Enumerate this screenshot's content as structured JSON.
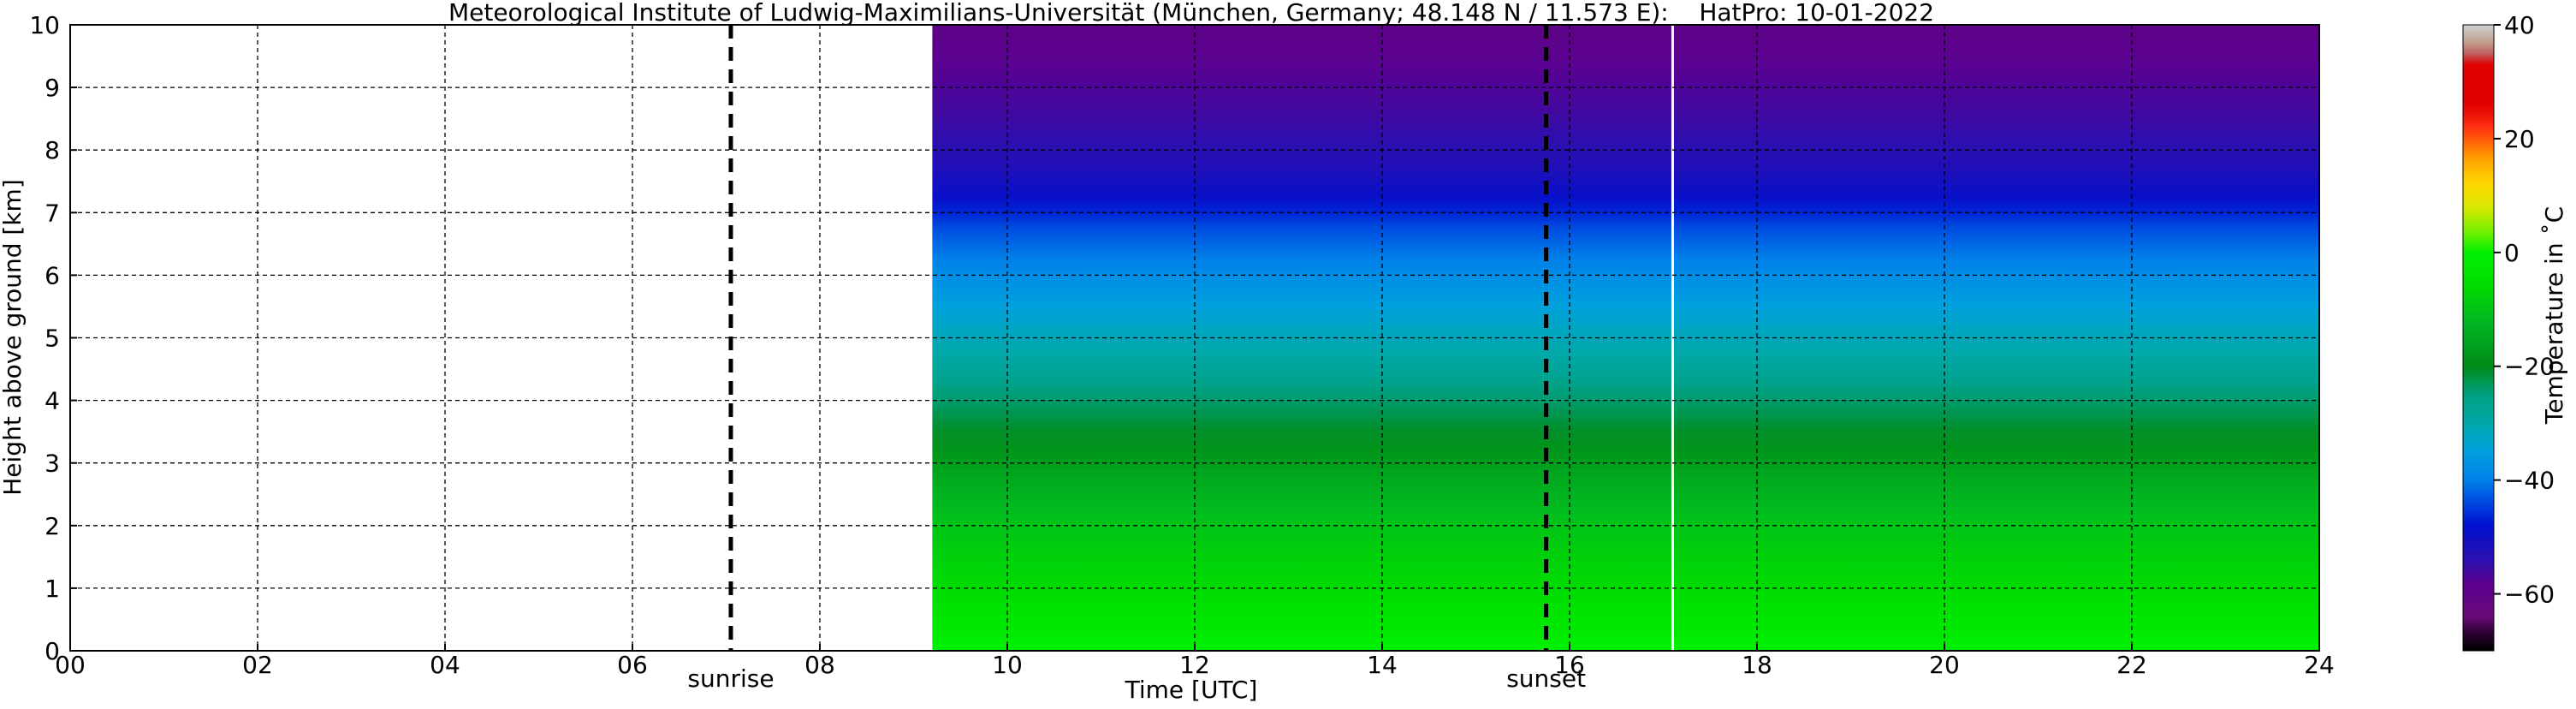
{
  "chart_data": {
    "type": "heatmap",
    "title": "Meteorological Institute of Ludwig-Maximilians-Universität (München, Germany; 48.148 N / 11.573 E):    HatPro: 10-01-2022",
    "xlabel": "Time [UTC]",
    "ylabel": "Height above ground [km]",
    "xlim": [
      0,
      24
    ],
    "ylim": [
      0,
      10
    ],
    "x_ticks": [
      "00",
      "02",
      "04",
      "06",
      "08",
      "10",
      "12",
      "14",
      "16",
      "18",
      "20",
      "22",
      "24"
    ],
    "y_ticks": [
      "0",
      "1",
      "2",
      "3",
      "4",
      "5",
      "6",
      "7",
      "8",
      "9",
      "10"
    ],
    "grid": true,
    "data_start_hour": 9.2,
    "data_end_hour": 24,
    "data_gap_hour": 17.1,
    "vertical_lines": [
      {
        "label": "sunrise",
        "x": 7.05
      },
      {
        "label": "sunset",
        "x": 15.75
      }
    ],
    "temperature_profile": [
      {
        "height_km": 0.0,
        "temp_c": 0
      },
      {
        "height_km": 0.3,
        "temp_c": -2
      },
      {
        "height_km": 1.0,
        "temp_c": -6
      },
      {
        "height_km": 2.0,
        "temp_c": -10
      },
      {
        "height_km": 2.8,
        "temp_c": -15
      },
      {
        "height_km": 3.4,
        "temp_c": -20
      },
      {
        "height_km": 4.0,
        "temp_c": -24
      },
      {
        "height_km": 4.6,
        "temp_c": -29
      },
      {
        "height_km": 5.4,
        "temp_c": -34
      },
      {
        "height_km": 6.0,
        "temp_c": -38
      },
      {
        "height_km": 6.8,
        "temp_c": -44
      },
      {
        "height_km": 7.2,
        "temp_c": -49
      },
      {
        "height_km": 7.8,
        "temp_c": -53
      },
      {
        "height_km": 8.6,
        "temp_c": -56
      },
      {
        "height_km": 9.4,
        "temp_c": -58
      },
      {
        "height_km": 10.0,
        "temp_c": -60
      }
    ],
    "colorbar": {
      "label": "Temperature in $^\\circ$C",
      "label_display": "Temperature in ˚C",
      "min": -70,
      "max": 40,
      "ticks": [
        "40",
        "20",
        "0",
        "−20",
        "−40",
        "−60"
      ],
      "tick_values": [
        40,
        20,
        0,
        -20,
        -40,
        -60
      ],
      "colors": [
        {
          "t": -70,
          "color": "#000000"
        },
        {
          "t": -67,
          "color": "#2a0030"
        },
        {
          "t": -64,
          "color": "#6a0a78"
        },
        {
          "t": -58,
          "color": "#5a0090"
        },
        {
          "t": -54,
          "color": "#2a10b0"
        },
        {
          "t": -48,
          "color": "#0010d0"
        },
        {
          "t": -44,
          "color": "#0048e0"
        },
        {
          "t": -40,
          "color": "#0080e8"
        },
        {
          "t": -35,
          "color": "#00a0e0"
        },
        {
          "t": -30,
          "color": "#00a8a8"
        },
        {
          "t": -25,
          "color": "#00a080"
        },
        {
          "t": -20,
          "color": "#008c1a"
        },
        {
          "t": -12,
          "color": "#00b820"
        },
        {
          "t": -6,
          "color": "#00dc00"
        },
        {
          "t": 0,
          "color": "#00f000"
        },
        {
          "t": 4,
          "color": "#80f000"
        },
        {
          "t": 8,
          "color": "#d8e800"
        },
        {
          "t": 12,
          "color": "#ffd800"
        },
        {
          "t": 16,
          "color": "#ffa800"
        },
        {
          "t": 22,
          "color": "#ff3010"
        },
        {
          "t": 26,
          "color": "#e00000"
        },
        {
          "t": 33,
          "color": "#e00000"
        },
        {
          "t": 35,
          "color": "#c06060"
        },
        {
          "t": 37,
          "color": "#c0a090"
        },
        {
          "t": 40,
          "color": "#d0d0d0"
        }
      ]
    }
  }
}
